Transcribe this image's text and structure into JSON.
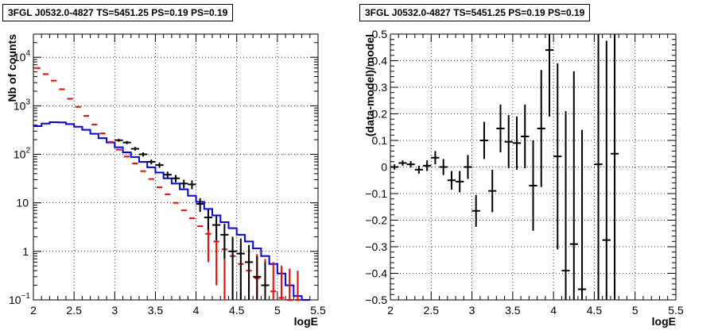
{
  "chart_data": [
    {
      "type": "line",
      "title": "3FGL J0532.0-4827 TS=5451.25 PS=0.19 PS=0.19",
      "xlabel": "logE",
      "ylabel": "Nb of counts",
      "xlim": [
        2,
        5.5
      ],
      "ylim": [
        0.1,
        30000
      ],
      "yscale": "log",
      "grid": true,
      "x_ticks": [
        "2",
        "2.5",
        "3",
        "3.5",
        "4",
        "4.5",
        "5",
        "5.5"
      ],
      "y_ticks": [
        "10^-1",
        "1",
        "10",
        "10^2",
        "10^3",
        "10^4"
      ],
      "bin_width": 0.1,
      "series": [
        {
          "color": "#ff0000",
          "style": "errorbar",
          "x": [
            2.05,
            2.15,
            2.25,
            2.35,
            2.45,
            2.55,
            2.65,
            2.75,
            2.85,
            2.95,
            3.05,
            3.15,
            3.25,
            3.35,
            3.45,
            3.55,
            3.65,
            3.75,
            3.85,
            3.95,
            4.05,
            4.15,
            4.25,
            4.35,
            4.45,
            4.55,
            4.65,
            4.75,
            4.85,
            4.95,
            5.05,
            5.15,
            5.25
          ],
          "y": [
            6000,
            4500,
            3300,
            2200,
            1400,
            950,
            620,
            410,
            270,
            180,
            125,
            90,
            65,
            45,
            31,
            21,
            15,
            10,
            7,
            4.8,
            3.3,
            2.3,
            1.6,
            1.1,
            0.8,
            0.55,
            0.4,
            0.28,
            0.2,
            0.15,
            0.11,
            0.09,
            0.1
          ],
          "err": [
            0,
            0,
            0,
            0,
            0,
            0,
            0,
            0,
            0,
            0,
            0,
            0,
            0,
            0,
            0,
            0,
            0,
            0,
            0,
            0,
            0,
            1.7,
            1.4,
            1.1,
            1.0,
            0.85,
            0.75,
            0.6,
            0.5,
            0.45,
            0.4,
            0.35,
            0.3
          ]
        },
        {
          "color": "#0000ff",
          "style": "step",
          "x": [
            2.05,
            2.15,
            2.25,
            2.35,
            2.45,
            2.55,
            2.65,
            2.75,
            2.85,
            2.95,
            3.05,
            3.15,
            3.25,
            3.35,
            3.45,
            3.55,
            3.65,
            3.75,
            3.85,
            3.95,
            4.05,
            4.15,
            4.25,
            4.35,
            4.45,
            4.55,
            4.65,
            4.75,
            4.85,
            4.95,
            5.05,
            5.15,
            5.25,
            5.35
          ],
          "y": [
            380,
            430,
            460,
            455,
            420,
            370,
            320,
            265,
            215,
            175,
            140,
            110,
            88,
            70,
            54,
            42,
            32,
            25,
            19,
            14,
            10.5,
            7.5,
            5.5,
            4,
            3,
            2.2,
            1.6,
            1.15,
            0.8,
            0.55,
            0.35,
            0.2,
            0.12,
            0.1
          ]
        },
        {
          "color": "#000000",
          "style": "errorbar",
          "x": [
            3.05,
            3.15,
            3.25,
            3.35,
            3.45,
            3.55,
            3.65,
            3.75,
            3.85,
            3.95,
            4.05,
            4.15,
            4.25,
            4.35,
            4.45,
            4.55,
            4.65,
            4.75,
            4.85
          ],
          "y": [
            195,
            175,
            130,
            100,
            70,
            60,
            38,
            32,
            25,
            24,
            9.5,
            5,
            3.5,
            2.2,
            1,
            0.9,
            0.6,
            0.3,
            0.2
          ],
          "err": [
            14,
            13,
            11,
            10,
            8,
            7.5,
            6,
            5.5,
            5,
            5,
            3,
            2.2,
            1.8,
            1.5,
            1,
            0.95,
            0.75,
            0.5,
            0.4
          ]
        }
      ]
    },
    {
      "type": "scatter",
      "title": "3FGL J0532.0-4827 TS=5451.25 PS=0.19 PS=0.19",
      "xlabel": "logE",
      "ylabel": "(data-model)/model",
      "xlim": [
        2,
        5.5
      ],
      "ylim": [
        -0.5,
        0.5
      ],
      "grid": true,
      "x_ticks": [
        "2",
        "2.5",
        "3",
        "3.5",
        "4",
        "4.5",
        "5",
        "5.5"
      ],
      "y_ticks": [
        "-0.5",
        "-0.4",
        "-0.3",
        "-0.2",
        "-0.1",
        "0",
        "0.1",
        "0.2",
        "0.3",
        "0.4",
        "0.5"
      ],
      "bin_width": 0.1,
      "series": [
        {
          "color": "#000000",
          "style": "errorbar",
          "x": [
            2.05,
            2.15,
            2.25,
            2.35,
            2.45,
            2.55,
            2.65,
            2.75,
            2.85,
            2.95,
            3.05,
            3.15,
            3.25,
            3.35,
            3.45,
            3.55,
            3.65,
            3.75,
            3.85,
            3.95,
            4.05,
            4.15,
            4.25,
            4.35,
            4.55,
            4.65,
            4.75
          ],
          "y": [
            0.0,
            0.015,
            0.01,
            -0.01,
            0.005,
            0.035,
            0.0,
            -0.05,
            -0.055,
            0.0,
            -0.165,
            0.1,
            -0.09,
            0.145,
            0.095,
            0.09,
            0.115,
            -0.07,
            0.145,
            0.44,
            0.04,
            -0.39,
            -0.29,
            -0.46,
            0.01,
            -0.275,
            0.05
          ],
          "err": [
            0.01,
            0.01,
            0.012,
            0.015,
            0.02,
            0.025,
            0.03,
            0.035,
            0.04,
            0.045,
            0.06,
            0.07,
            0.08,
            0.09,
            0.1,
            0.1,
            0.12,
            0.17,
            0.22,
            0.25,
            0.35,
            0.6,
            0.65,
            0.6,
            0.9,
            0.75,
            0.9
          ]
        }
      ]
    }
  ]
}
